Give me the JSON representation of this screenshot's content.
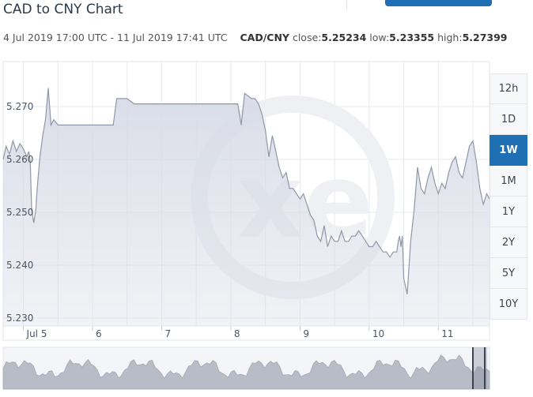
{
  "title": "CAD to CNY Chart",
  "subtitle": {
    "range": "4 Jul 2019 17:00 UTC - 11 Jul 2019 17:41 UTC",
    "pair": "CAD/CNY",
    "close_label": "close:",
    "close": "5.25234",
    "low_label": "low:",
    "low": "5.23355",
    "high_label": "high:",
    "high": "5.27399"
  },
  "watermark": "xe",
  "ranges": [
    {
      "label": "12h",
      "active": false
    },
    {
      "label": "1D",
      "active": false
    },
    {
      "label": "1W",
      "active": true
    },
    {
      "label": "1M",
      "active": false
    },
    {
      "label": "1Y",
      "active": false
    },
    {
      "label": "2Y",
      "active": false
    },
    {
      "label": "5Y",
      "active": false
    },
    {
      "label": "10Y",
      "active": false
    }
  ],
  "colors": {
    "line": "#8f97a8",
    "fill": "#d7dbe6",
    "active_range": "#1f6fb4",
    "grid": "#e7eaee",
    "navigator": "#b8bcc6"
  },
  "chart_data": {
    "type": "area",
    "title": "",
    "xlabel": "",
    "ylabel": "",
    "ylim": [
      5.2285,
      5.2785
    ],
    "xlim": [
      4.708,
      11.74
    ],
    "yticks": [
      5.23,
      5.24,
      5.25,
      5.26,
      5.27
    ],
    "ytick_labels": [
      "5.230",
      "5.240",
      "5.250",
      "5.260",
      "5.270"
    ],
    "xticks": [
      5,
      6,
      7,
      8,
      9,
      10,
      11
    ],
    "xtick_labels": [
      "Jul 5",
      "6",
      "7",
      "8",
      "9",
      "10",
      "11"
    ],
    "grid": true,
    "legend": "none",
    "series": [
      {
        "x": [
          4.708,
          4.75,
          4.8,
          4.85,
          4.9,
          4.95,
          5.0,
          5.05,
          5.08,
          5.1,
          5.12,
          5.15,
          5.18,
          5.2,
          5.24,
          5.28,
          5.32,
          5.36,
          5.4,
          5.44,
          5.5,
          5.6,
          5.7,
          5.8,
          5.9,
          6.0,
          6.1,
          6.2,
          6.3,
          6.35,
          6.4,
          6.5,
          6.6,
          6.7,
          6.8,
          6.9,
          7.0,
          7.1,
          7.2,
          7.3,
          7.4,
          7.5,
          7.6,
          7.7,
          7.8,
          7.9,
          8.0,
          8.05,
          8.1,
          8.15,
          8.2,
          8.3,
          8.35,
          8.4,
          8.45,
          8.5,
          8.55,
          8.6,
          8.65,
          8.7,
          8.75,
          8.8,
          8.85,
          8.9,
          8.95,
          9.0,
          9.05,
          9.1,
          9.15,
          9.2,
          9.25,
          9.3,
          9.35,
          9.4,
          9.45,
          9.5,
          9.55,
          9.6,
          9.65,
          9.7,
          9.75,
          9.8,
          9.85,
          9.9,
          9.95,
          10.0,
          10.05,
          10.1,
          10.15,
          10.2,
          10.25,
          10.3,
          10.35,
          10.4,
          10.42,
          10.44,
          10.46,
          10.48,
          10.5,
          10.55,
          10.6,
          10.65,
          10.7,
          10.75,
          10.8,
          10.85,
          10.9,
          10.95,
          11.0,
          11.05,
          11.1,
          11.15,
          11.2,
          11.25,
          11.3,
          11.35,
          11.4,
          11.45,
          11.5,
          11.55,
          11.6,
          11.65,
          11.7,
          11.74
        ],
        "y": [
          5.26,
          5.2625,
          5.261,
          5.2635,
          5.2615,
          5.263,
          5.262,
          5.2605,
          5.2615,
          5.2595,
          5.2505,
          5.248,
          5.2505,
          5.2545,
          5.2605,
          5.2645,
          5.2675,
          5.2735,
          5.2665,
          5.2675,
          5.2665,
          5.2665,
          5.2665,
          5.2665,
          5.2665,
          5.2665,
          5.2665,
          5.2665,
          5.2665,
          5.2715,
          5.2715,
          5.2715,
          5.2705,
          5.2705,
          5.2705,
          5.2705,
          5.2705,
          5.2705,
          5.2705,
          5.2705,
          5.2705,
          5.2705,
          5.2705,
          5.2705,
          5.2705,
          5.2705,
          5.2705,
          5.2705,
          5.2705,
          5.2665,
          5.2725,
          5.2715,
          5.2715,
          5.2705,
          5.2685,
          5.2655,
          5.2605,
          5.2645,
          5.2615,
          5.2585,
          5.2565,
          5.2575,
          5.2545,
          5.2545,
          5.2535,
          5.2525,
          5.2535,
          5.2515,
          5.2495,
          5.2485,
          5.2455,
          5.2445,
          5.2475,
          5.2435,
          5.2455,
          5.2445,
          5.2445,
          5.2465,
          5.2445,
          5.2445,
          5.2455,
          5.2455,
          5.2465,
          5.2455,
          5.2445,
          5.2435,
          5.2435,
          5.2445,
          5.2435,
          5.2425,
          5.2425,
          5.2415,
          5.2425,
          5.2425,
          5.2445,
          5.2455,
          5.2435,
          5.2455,
          5.2375,
          5.2345,
          5.2445,
          5.2505,
          5.2585,
          5.2545,
          5.2535,
          5.2565,
          5.2585,
          5.2555,
          5.2535,
          5.2555,
          5.2545,
          5.2575,
          5.2595,
          5.2605,
          5.2575,
          5.2565,
          5.2595,
          5.2625,
          5.2635,
          5.2595,
          5.2545,
          5.2515,
          5.2535,
          5.2525
        ]
      }
    ]
  }
}
